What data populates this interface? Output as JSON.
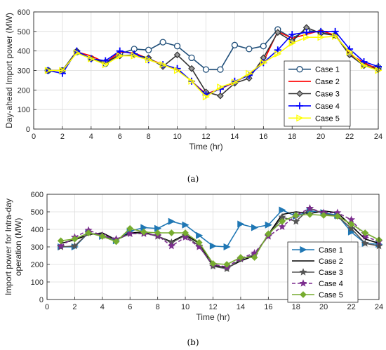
{
  "chart_data": [
    {
      "type": "line",
      "caption": "(a)",
      "xlabel": "Time (hr)",
      "ylabel": "Day-ahead Import power (MW)",
      "xlim": [
        0,
        24
      ],
      "ylim": [
        0,
        600
      ],
      "xticks": [
        0,
        2,
        4,
        6,
        8,
        10,
        12,
        14,
        16,
        18,
        20,
        22,
        24
      ],
      "yticks": [
        0,
        100,
        200,
        300,
        400,
        500,
        600
      ],
      "grid": true,
      "legend_position": "right",
      "x": [
        1,
        2,
        3,
        4,
        5,
        6,
        7,
        8,
        9,
        10,
        11,
        12,
        13,
        14,
        15,
        16,
        17,
        18,
        19,
        20,
        21,
        22,
        23,
        24
      ],
      "series": [
        {
          "name": "Case 1",
          "color": "#1f4e79",
          "marker": "circle",
          "values": [
            300,
            300,
            395,
            362,
            335,
            385,
            410,
            405,
            445,
            425,
            365,
            305,
            305,
            430,
            410,
            425,
            510,
            465,
            505,
            495,
            480,
            390,
            330,
            315
          ]
        },
        {
          "name": "Case 2",
          "color": "#ff0000",
          "marker": "none",
          "values": [
            300,
            300,
            395,
            375,
            340,
            395,
            390,
            360,
            330,
            305,
            245,
            180,
            205,
            240,
            280,
            345,
            500,
            465,
            485,
            505,
            480,
            385,
            340,
            305
          ]
        },
        {
          "name": "Case 3",
          "color": "#333333",
          "marker": "diamond",
          "values": [
            300,
            300,
            400,
            360,
            345,
            375,
            380,
            365,
            320,
            380,
            310,
            190,
            170,
            235,
            260,
            365,
            495,
            450,
            520,
            490,
            480,
            380,
            325,
            305
          ]
        },
        {
          "name": "Case 4",
          "color": "#0000ff",
          "marker": "plus",
          "values": [
            300,
            285,
            400,
            360,
            350,
            400,
            385,
            355,
            330,
            310,
            245,
            175,
            205,
            245,
            275,
            340,
            405,
            485,
            495,
            500,
            500,
            410,
            345,
            320
          ]
        },
        {
          "name": "Case 5",
          "color": "#ffff00",
          "marker": "triangle-right",
          "values": [
            300,
            300,
            390,
            360,
            330,
            375,
            375,
            355,
            330,
            300,
            245,
            165,
            215,
            240,
            285,
            340,
            385,
            440,
            470,
            470,
            475,
            395,
            325,
            300
          ]
        }
      ]
    },
    {
      "type": "line",
      "caption": "(b)",
      "xlabel": "Time (hr)",
      "ylabel": [
        "Import power for Intra-day",
        "operation (MW)"
      ],
      "xlim": [
        0,
        24
      ],
      "ylim": [
        0,
        600
      ],
      "xticks": [
        0,
        2,
        4,
        6,
        8,
        10,
        12,
        14,
        16,
        18,
        20,
        22,
        24
      ],
      "yticks": [
        0,
        100,
        200,
        300,
        400,
        500,
        600
      ],
      "grid": true,
      "legend_position": "right",
      "x": [
        1,
        2,
        3,
        4,
        5,
        6,
        7,
        8,
        9,
        10,
        11,
        12,
        13,
        14,
        15,
        16,
        17,
        18,
        19,
        20,
        21,
        22,
        23,
        24
      ],
      "series": [
        {
          "name": "Case 1",
          "color": "#1f77b4",
          "marker": "triangle-right",
          "dash": "solid",
          "values": [
            300,
            300,
            380,
            360,
            335,
            390,
            410,
            405,
            445,
            425,
            365,
            305,
            300,
            430,
            410,
            425,
            510,
            475,
            505,
            495,
            480,
            385,
            320,
            315
          ]
        },
        {
          "name": "Case 2",
          "color": "#000000",
          "marker": "none",
          "dash": "solid",
          "values": [
            320,
            340,
            370,
            380,
            340,
            380,
            385,
            360,
            330,
            370,
            320,
            195,
            180,
            220,
            250,
            370,
            485,
            500,
            490,
            505,
            495,
            420,
            345,
            320
          ]
        },
        {
          "name": "Case 3",
          "color": "#555555",
          "marker": "star",
          "dash": "solid",
          "values": [
            300,
            305,
            380,
            365,
            340,
            375,
            380,
            360,
            325,
            365,
            305,
            190,
            175,
            230,
            255,
            365,
            470,
            445,
            520,
            490,
            475,
            405,
            320,
            305
          ]
        },
        {
          "name": "Case 4",
          "color": "#7b2d8e",
          "marker": "star",
          "dash": "dashed",
          "values": [
            305,
            355,
            395,
            365,
            345,
            375,
            375,
            365,
            305,
            355,
            300,
            200,
            185,
            235,
            265,
            360,
            415,
            480,
            520,
            495,
            495,
            455,
            360,
            330
          ]
        },
        {
          "name": "Case 5",
          "color": "#77ac30",
          "marker": "diamond",
          "dash": "solid",
          "values": [
            335,
            345,
            380,
            360,
            330,
            405,
            385,
            380,
            380,
            380,
            325,
            205,
            200,
            240,
            240,
            375,
            445,
            480,
            485,
            480,
            475,
            430,
            380,
            340
          ]
        }
      ]
    }
  ]
}
